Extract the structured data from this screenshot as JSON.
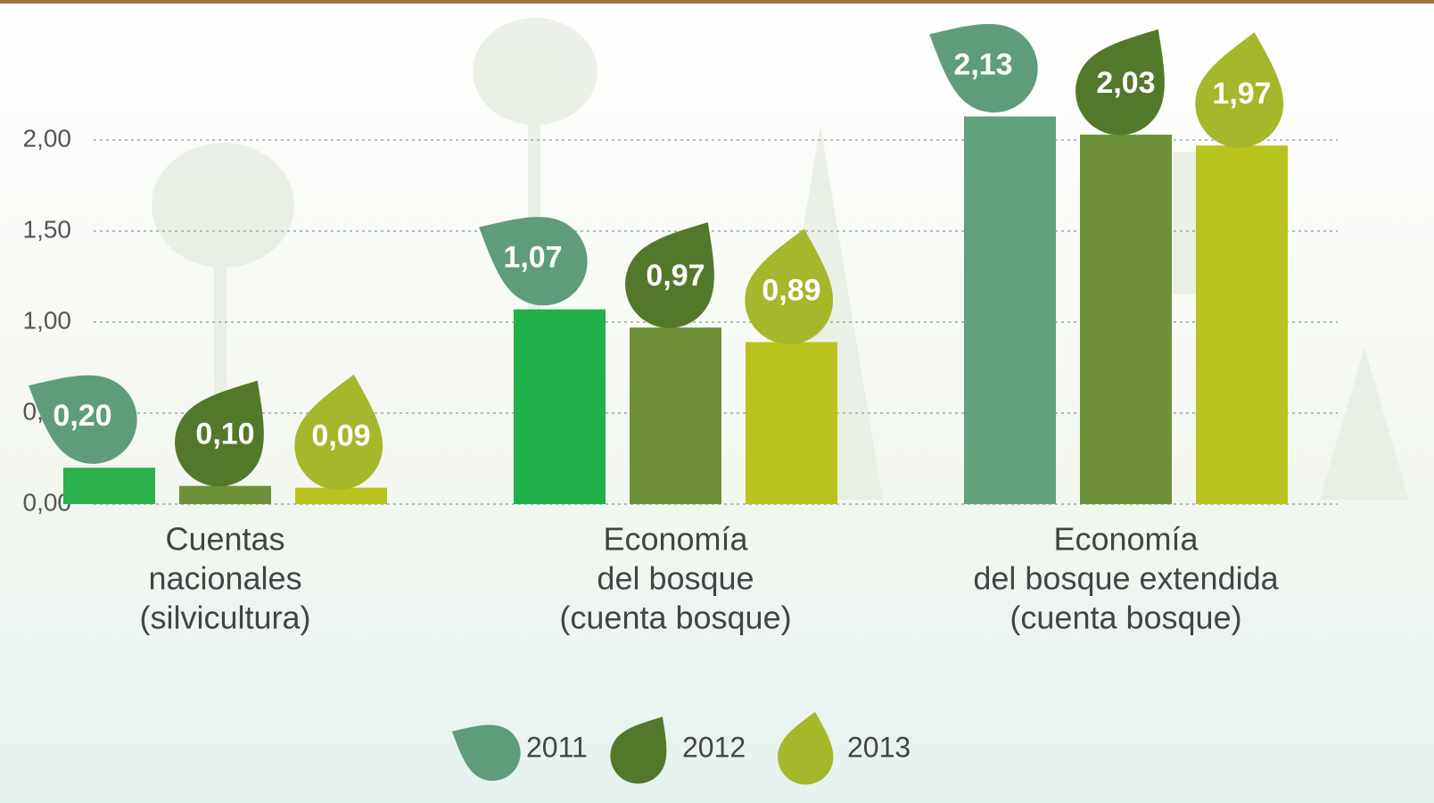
{
  "chart_data": {
    "type": "bar",
    "categories": [
      [
        "Cuentas",
        "nacionales",
        "(silvicultura)"
      ],
      [
        "Economía",
        "del bosque",
        "(cuenta bosque)"
      ],
      [
        "Economía",
        "del bosque extendida",
        "(cuenta bosque)"
      ]
    ],
    "series": [
      {
        "name": "2011",
        "color": "#5e9c7c",
        "bar_colors": [
          "#2cb14c",
          "#22b04a",
          "#62a07e"
        ],
        "values": [
          0.2,
          1.07,
          2.13
        ],
        "value_labels": [
          "0,20",
          "1,07",
          "2,13"
        ]
      },
      {
        "name": "2012",
        "color": "#52792b",
        "bar_colors": [
          "#6e9038",
          "#6e9038",
          "#6e9038"
        ],
        "values": [
          0.1,
          0.97,
          2.03
        ],
        "value_labels": [
          "0,10",
          "0,97",
          "2,03"
        ]
      },
      {
        "name": "2013",
        "color": "#a5b72a",
        "bar_colors": [
          "#b9c31d",
          "#b9c31d",
          "#b9c31d"
        ],
        "values": [
          0.09,
          0.89,
          1.97
        ],
        "value_labels": [
          "0,09",
          "0,89",
          "1,97"
        ]
      }
    ],
    "ylim": [
      0,
      2.5
    ],
    "yticks": [
      {
        "value": 0,
        "label": "0,00"
      },
      {
        "value": 0.5,
        "label": "0,50"
      },
      {
        "value": 1,
        "label": "1,00"
      },
      {
        "value": 1.5,
        "label": "1,50"
      },
      {
        "value": 2,
        "label": "2,00"
      }
    ],
    "grid": true,
    "legend": "bottom"
  }
}
